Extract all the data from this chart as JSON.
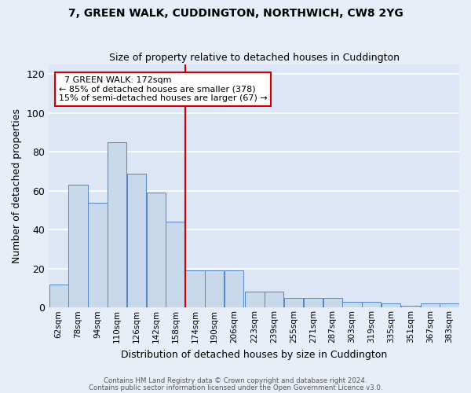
{
  "title1": "7, GREEN WALK, CUDDINGTON, NORTHWICH, CW8 2YG",
  "title2": "Size of property relative to detached houses in Cuddington",
  "xlabel": "Distribution of detached houses by size in Cuddington",
  "ylabel": "Number of detached properties",
  "annotation_line1": "7 GREEN WALK: 172sqm",
  "annotation_line2": "← 85% of detached houses are smaller (378)",
  "annotation_line3": "15% of semi-detached houses are larger (67) →",
  "bar_edges": [
    62,
    78,
    94,
    110,
    126,
    142,
    158,
    174,
    190,
    206,
    223,
    239,
    255,
    271,
    287,
    303,
    319,
    335,
    351,
    367,
    383
  ],
  "bar_heights": [
    12,
    63,
    54,
    85,
    69,
    59,
    44,
    19,
    19,
    19,
    8,
    8,
    5,
    5,
    5,
    3,
    3,
    2,
    1,
    2,
    2
  ],
  "bar_color": "#c9d9ec",
  "bar_edge_color": "#5585c5",
  "red_line_x": 174,
  "annotation_box_color": "#ffffff",
  "annotation_box_edge": "#cc0000",
  "red_line_color": "#cc0000",
  "background_color": "#dce6f5",
  "fig_background_color": "#e8eef8",
  "grid_color": "#ffffff",
  "ylim": [
    0,
    125
  ],
  "yticks": [
    0,
    20,
    40,
    60,
    80,
    100,
    120
  ],
  "footer1": "Contains HM Land Registry data © Crown copyright and database right 2024.",
  "footer2": "Contains public sector information licensed under the Open Government Licence v3.0."
}
